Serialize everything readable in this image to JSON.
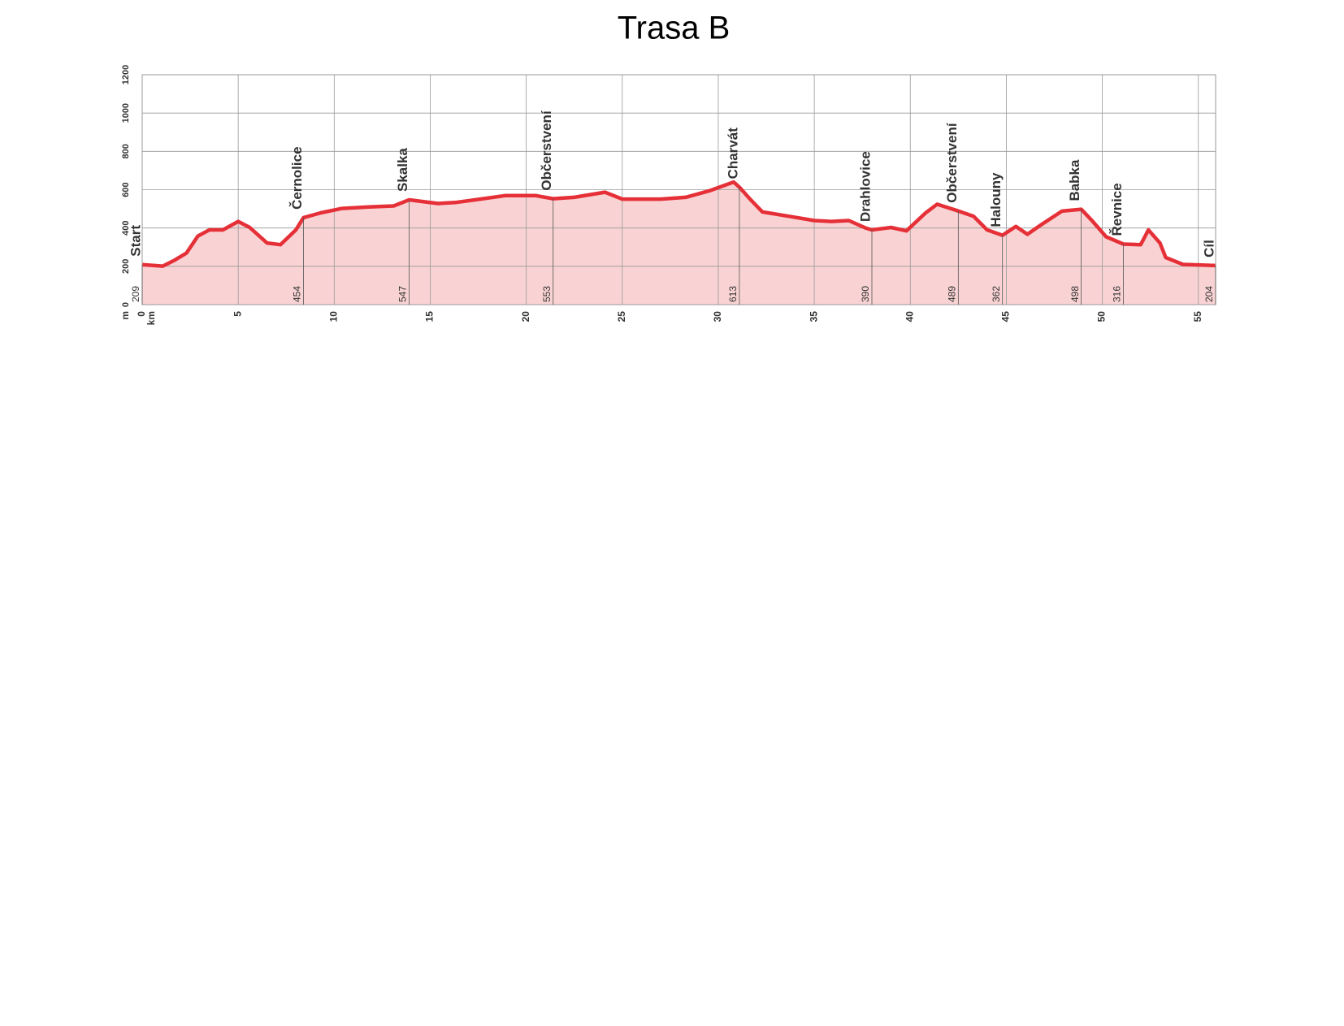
{
  "chart_data": {
    "type": "area",
    "title": "Trasa B",
    "xlabel": "km",
    "ylabel": "m",
    "x": [
      0,
      1.07,
      1.7,
      2.3,
      2.9,
      3.5,
      4.2,
      5.0,
      5.6,
      6.5,
      7.2,
      8.0,
      8.4,
      9.3,
      10.4,
      11.8,
      13.1,
      13.9,
      15.4,
      16.3,
      17.6,
      18.9,
      20.5,
      21.4,
      22.5,
      24.1,
      25.0,
      27.0,
      28.3,
      29.6,
      30.8,
      31.1,
      31.7,
      32.3,
      33.7,
      35.0,
      35.9,
      36.8,
      37.7,
      38.0,
      39.0,
      39.8,
      40.8,
      41.4,
      42.5,
      43.3,
      44.0,
      44.8,
      45.5,
      46.1,
      46.8,
      47.9,
      48.9,
      49.5,
      50.2,
      51.1,
      52.0,
      52.4,
      53.0,
      53.3,
      54.2,
      55.9
    ],
    "series": [
      {
        "color": "#e63038",
        "fill": "#f9d3d3",
        "values": [
          209,
          201,
          233,
          269,
          358,
          390,
          390,
          434,
          403,
          322,
          313,
          390,
          454,
          479,
          502,
          510,
          515,
          547,
          528,
          533,
          551,
          569,
          569,
          553,
          560,
          587,
          551,
          551,
          560,
          596,
          640,
          613,
          546,
          484,
          461,
          439,
          434,
          439,
          399,
          390,
          403,
          385,
          479,
          524,
          489,
          461,
          390,
          362,
          408,
          367,
          416,
          488,
          498,
          434,
          354,
          316,
          313,
          390,
          322,
          246,
          210,
          204
        ]
      }
    ],
    "waypoints": [
      {
        "label": "Start",
        "x": 0,
        "value": 209
      },
      {
        "label": "Černolice",
        "x": 8.4,
        "value": 454
      },
      {
        "label": "Skalka",
        "x": 13.9,
        "value": 547
      },
      {
        "label": "Občerstvení",
        "x": 21.4,
        "value": 553
      },
      {
        "label": "Charvát",
        "x": 31.1,
        "value": 613
      },
      {
        "label": "Drahlovice",
        "x": 38.0,
        "value": 390
      },
      {
        "label": "Občerstvení",
        "x": 42.5,
        "value": 489
      },
      {
        "label": "Halouny",
        "x": 44.8,
        "value": 362
      },
      {
        "label": "Babka",
        "x": 48.9,
        "value": 498
      },
      {
        "label": "Řevnice",
        "x": 51.1,
        "value": 316
      },
      {
        "label": "Cíl",
        "x": 55.9,
        "value": 204
      }
    ],
    "xlim": [
      0,
      55.9
    ],
    "xticks": [
      0,
      5,
      10,
      15,
      20,
      25,
      30,
      35,
      40,
      45,
      50,
      55
    ],
    "ylim": [
      0,
      1200
    ],
    "yticks": [
      0,
      200,
      400,
      600,
      800,
      1000,
      1200
    ],
    "grid": true
  }
}
